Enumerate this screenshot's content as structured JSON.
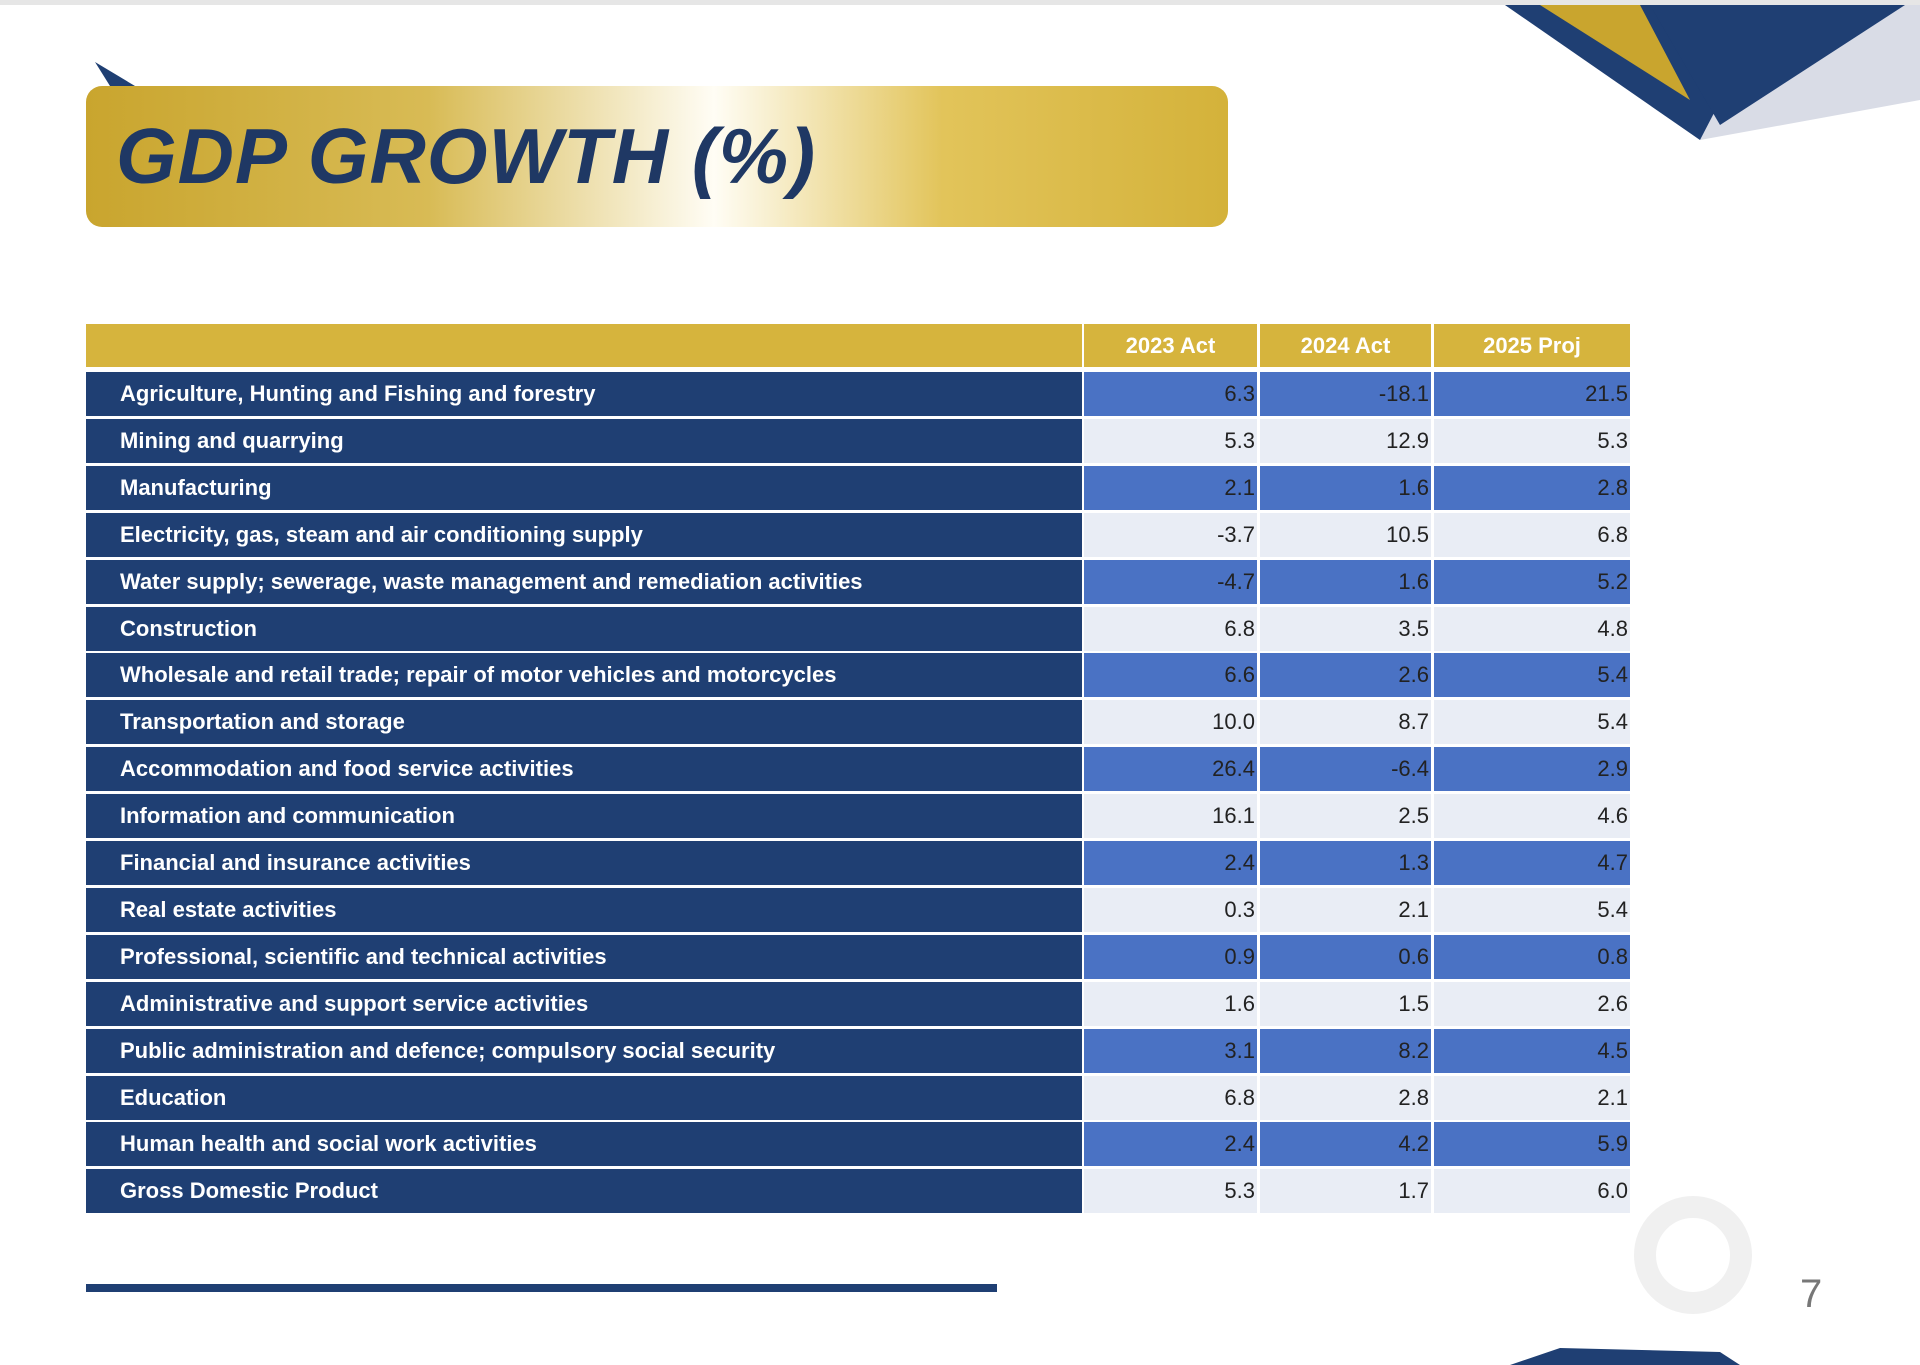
{
  "header": {
    "title": "GDP GROWTH (%)"
  },
  "table": {
    "columns": [
      "2023 Act",
      "2024 Act",
      "2025 Proj"
    ],
    "rows": [
      [
        "Agriculture, Hunting and Fishing and forestry",
        "6.3",
        "-18.1",
        "21.5"
      ],
      [
        "Mining and quarrying",
        "5.3",
        "12.9",
        "5.3"
      ],
      [
        "Manufacturing",
        "2.1",
        "1.6",
        "2.8"
      ],
      [
        "Electricity, gas, steam and air conditioning supply",
        "-3.7",
        "10.5",
        "6.8"
      ],
      [
        "Water supply; sewerage, waste management and remediation activities",
        "-4.7",
        "1.6",
        "5.2"
      ],
      [
        "Construction",
        "6.8",
        "3.5",
        "4.8"
      ],
      [
        "Wholesale and retail trade; repair of motor vehicles and motorcycles",
        "6.6",
        "2.6",
        "5.4"
      ],
      [
        "Transportation and storage",
        "10.0",
        "8.7",
        "5.4"
      ],
      [
        "Accommodation and food service activities",
        "26.4",
        "-6.4",
        "2.9"
      ],
      [
        "Information and communication",
        "16.1",
        "2.5",
        "4.6"
      ],
      [
        "Financial and insurance activities",
        "2.4",
        "1.3",
        "4.7"
      ],
      [
        "Real estate activities",
        "0.3",
        "2.1",
        "5.4"
      ],
      [
        "Professional, scientific and technical activities",
        "0.9",
        "0.6",
        "0.8"
      ],
      [
        "Administrative and support service activities",
        "1.6",
        "1.5",
        "2.6"
      ],
      [
        "Public administration and defence; compulsory social security",
        "3.1",
        "8.2",
        "4.5"
      ],
      [
        "Education",
        "6.8",
        "2.8",
        "2.1"
      ],
      [
        "Human health and social work activities",
        "2.4",
        "4.2",
        "5.9"
      ],
      [
        "Gross Domestic Product",
        "5.3",
        "1.7",
        "6.0"
      ]
    ]
  },
  "footer": {
    "page_number": "7"
  }
}
